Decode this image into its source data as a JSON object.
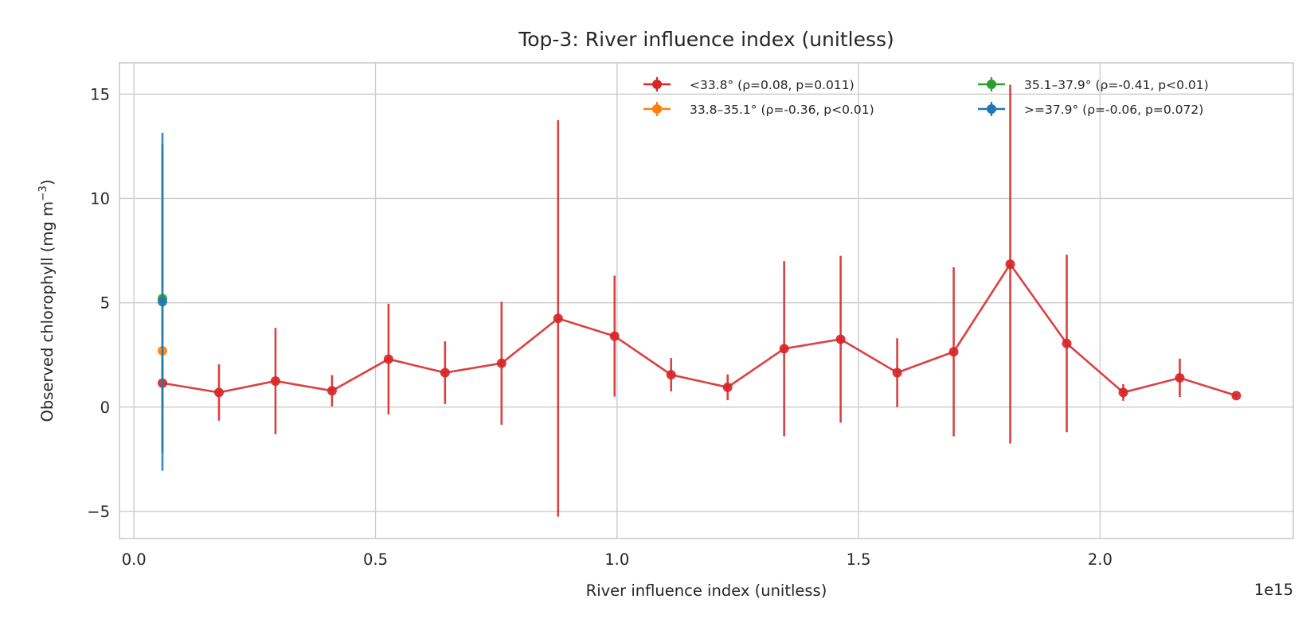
{
  "chart_data": {
    "type": "line",
    "title": "Top-3: River influence index (unitless)",
    "xlabel": "River influence index (unitless)",
    "ylabel": "Observed chlorophyll (mg m",
    "ylabel_sup": "−3",
    "ylabel_close": ")",
    "x_offset_label": "1e15",
    "xlim": [
      -0.03,
      2.4
    ],
    "ylim": [
      -6.3,
      16.5
    ],
    "x_ticks": [
      0.0,
      0.5,
      1.0,
      1.5,
      2.0
    ],
    "x_tick_labels": [
      "0.0",
      "0.5",
      "1.0",
      "1.5",
      "2.0"
    ],
    "y_ticks": [
      -5,
      0,
      5,
      10,
      15
    ],
    "y_tick_labels": [
      "−5",
      "0",
      "5",
      "10",
      "15"
    ],
    "grid": true,
    "legend_position": "top-right",
    "series": [
      {
        "name": "<33.8° (ρ=0.08, p=0.011)",
        "color": "#d62728",
        "x": [
          0.059,
          0.176,
          0.293,
          0.41,
          0.527,
          0.644,
          0.761,
          0.878,
          0.995,
          1.112,
          1.229,
          1.346,
          1.463,
          1.58,
          1.697,
          1.814,
          1.931,
          2.048,
          2.165,
          2.282
        ],
        "y": [
          1.15,
          0.7,
          1.25,
          0.78,
          2.3,
          1.65,
          2.1,
          4.25,
          3.4,
          1.55,
          0.95,
          2.8,
          3.25,
          1.65,
          2.65,
          6.85,
          3.05,
          0.7,
          1.4,
          0.55
        ],
        "yerr": [
          1.1,
          1.35,
          2.55,
          0.75,
          2.65,
          1.5,
          2.95,
          9.5,
          2.9,
          0.8,
          0.62,
          4.2,
          4.0,
          1.65,
          4.05,
          8.6,
          4.25,
          0.4,
          0.92,
          0.1
        ]
      },
      {
        "name": "33.8–35.1° (ρ=-0.36, p<0.01)",
        "color": "#ff7f0e",
        "x": [
          0.059
        ],
        "y": [
          2.7
        ],
        "yerr": [
          0
        ]
      },
      {
        "name": "35.1–37.9° (ρ=-0.41, p<0.01)",
        "color": "#2ca02c",
        "x": [
          0.059
        ],
        "y": [
          5.2
        ],
        "yerr": [
          7.4
        ]
      },
      {
        "name": ">=37.9° (ρ=-0.06, p=0.072)",
        "color": "#1f77b4",
        "x": [
          0.059
        ],
        "y": [
          5.05
        ],
        "yerr": [
          8.1
        ]
      }
    ]
  }
}
